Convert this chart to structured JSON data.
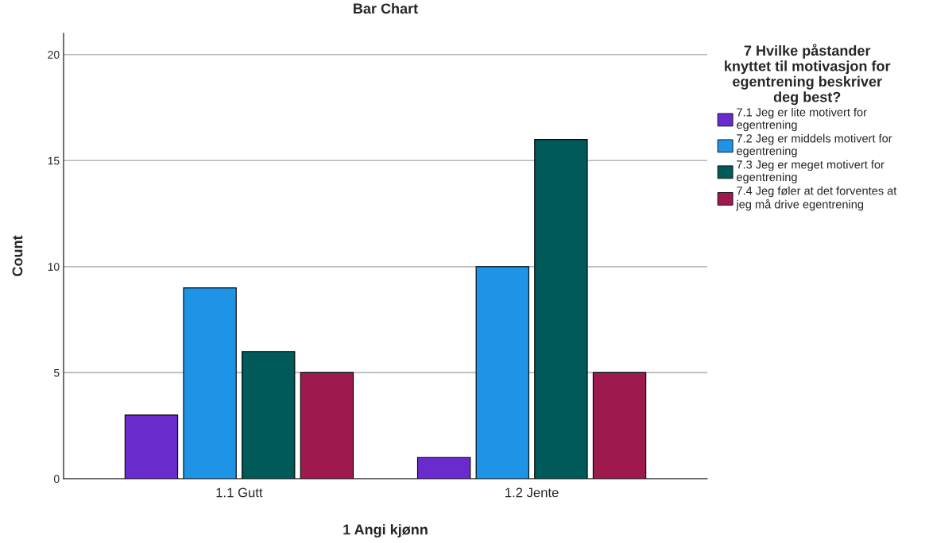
{
  "chart_data": {
    "type": "bar",
    "title": "Bar Chart",
    "xlabel": "1 Angi kjønn",
    "ylabel": "Count",
    "legend_title": "7 Hvilke påstander\nknyttet til motivasjon for\negentrening beskriver\ndeg best?",
    "categories": [
      "1.1 Gutt",
      "1.2 Jente"
    ],
    "series": [
      {
        "name": "7.1 Jeg er lite motivert for\negentrening",
        "color": "#6a2bcc",
        "values": [
          3,
          1
        ]
      },
      {
        "name": "7.2 Jeg er middels motivert for\negentrening",
        "color": "#1f94e6",
        "values": [
          9,
          10
        ]
      },
      {
        "name": "7.3 Jeg er meget motivert for\negentrening",
        "color": "#005a5a",
        "values": [
          6,
          16
        ]
      },
      {
        "name": "7.4 Jeg føler at det forventes at\njeg må drive egentrening",
        "color": "#9e1a4e",
        "values": [
          5,
          5
        ]
      }
    ],
    "ylim": [
      0,
      21
    ],
    "yticks": [
      0,
      5,
      10,
      15,
      20
    ],
    "grid": "y",
    "legend": "right"
  }
}
